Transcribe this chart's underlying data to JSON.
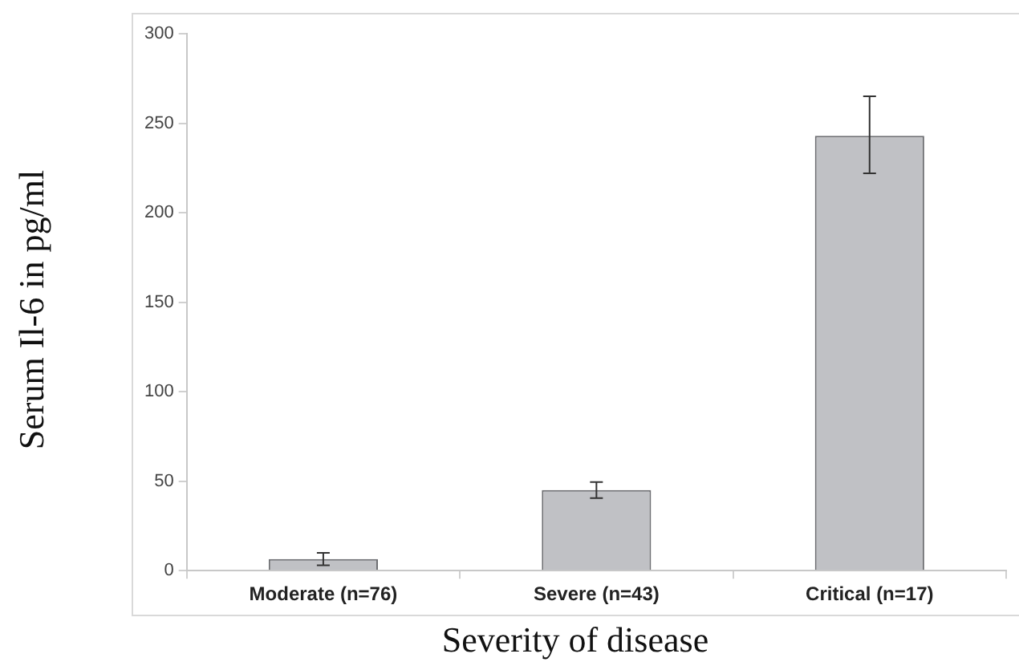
{
  "chart_data": {
    "type": "bar",
    "xlabel": "Severity of disease",
    "ylabel": "Serum Il-6 in pg/ml",
    "categories": [
      "Moderate (n=76)",
      "Severe (n=43)",
      "Critical (n=17)"
    ],
    "values": [
      6.5,
      45,
      243
    ],
    "color": "#c0c1c5",
    "errors": [
      [
        3,
        10
      ],
      [
        40.5,
        49.5
      ],
      [
        222,
        265
      ]
    ],
    "ylim": [
      0,
      300
    ],
    "yticks": [
      0,
      50,
      100,
      150,
      200,
      250,
      300
    ],
    "grid": false,
    "legend": false
  }
}
